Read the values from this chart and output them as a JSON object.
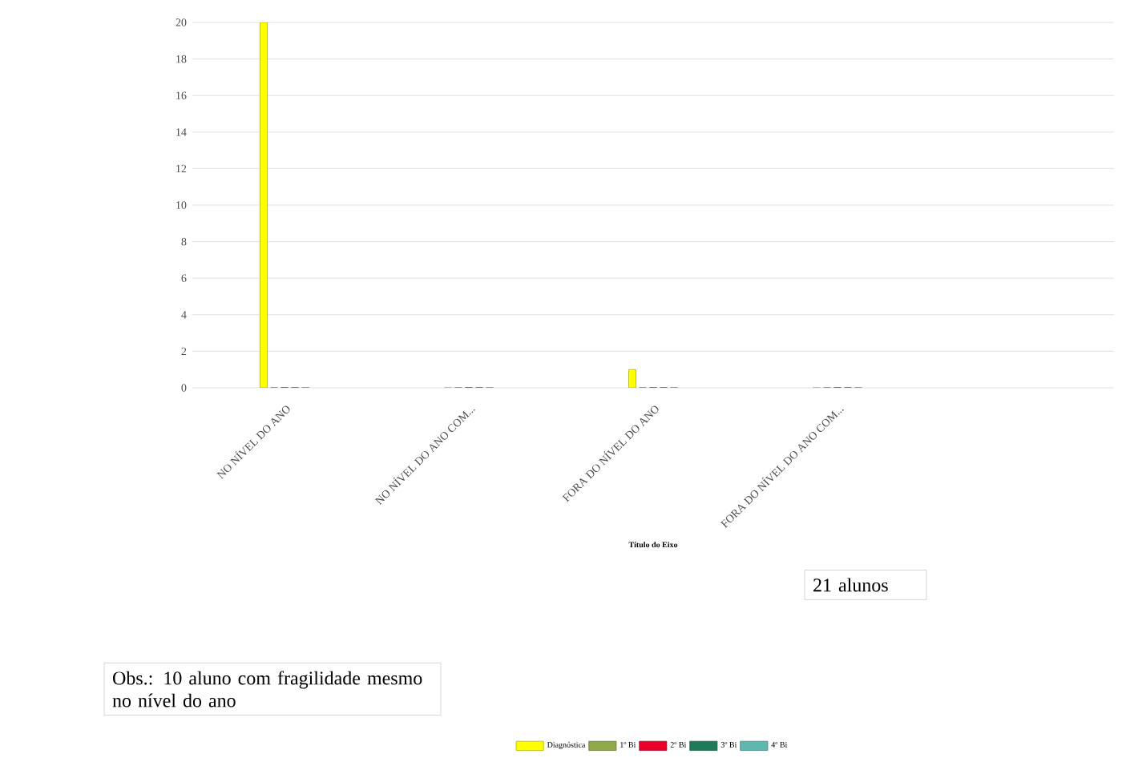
{
  "chart_data": {
    "type": "bar",
    "categories": [
      "NO NÍVEL DO ANO",
      "NO NÍVEL DO ANO COM...",
      "FORA DO NÍVEL DO ANO",
      "FORA DO NÍVEL DO ANO COM..."
    ],
    "series": [
      {
        "name": "Diagnóstica",
        "color": "#ffff00",
        "values": [
          20,
          0,
          1,
          0
        ]
      },
      {
        "name": "1º Bi",
        "color": "#8fa84a",
        "values": [
          0,
          0,
          0,
          0
        ]
      },
      {
        "name": "2º Bi",
        "color": "#e8002a",
        "values": [
          0,
          0,
          0,
          0
        ]
      },
      {
        "name": "3º Bi",
        "color": "#1f7a5a",
        "values": [
          0,
          0,
          0,
          0
        ]
      },
      {
        "name": "4º Bi",
        "color": "#5fb8b0",
        "values": [
          0,
          0,
          0,
          0
        ]
      }
    ],
    "xlabel": "Título do Eixo",
    "ylim": [
      0,
      20
    ],
    "yticks": [
      0,
      2,
      4,
      6,
      8,
      10,
      12,
      14,
      16,
      18,
      20
    ],
    "grid": "y",
    "legend": "bottom",
    "annotations": [
      "21 alunos",
      "Obs.: 10 aluno com fragilidade mesmo no nível do ano"
    ]
  }
}
